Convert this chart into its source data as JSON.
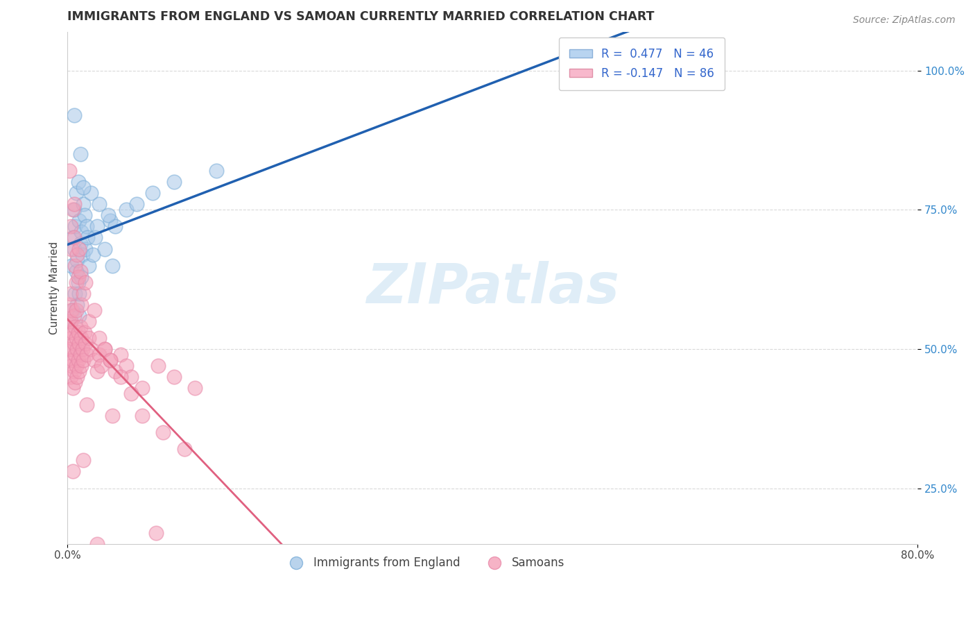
{
  "title": "IMMIGRANTS FROM ENGLAND VS SAMOAN CURRENTLY MARRIED CORRELATION CHART",
  "source_text": "Source: ZipAtlas.com",
  "ylabel": "Currently Married",
  "xlim": [
    0.0,
    80.0
  ],
  "ylim": [
    15.0,
    107.0
  ],
  "x_tick_labels": [
    "0.0%",
    "80.0%"
  ],
  "y_ticks": [
    25.0,
    50.0,
    75.0,
    100.0
  ],
  "y_tick_labels": [
    "25.0%",
    "50.0%",
    "75.0%",
    "100.0%"
  ],
  "blue_color": "#a8c8e8",
  "pink_color": "#f4a0b8",
  "blue_line_color": "#2060b0",
  "pink_line_color": "#e06080",
  "watermark": "ZIPatlas",
  "watermark_color": "#c0ddf0",
  "background_color": "#ffffff",
  "grid_color": "#d0d0d0",
  "blue_scatter_x": [
    0.3,
    0.4,
    0.5,
    0.5,
    0.6,
    0.6,
    0.7,
    0.7,
    0.8,
    0.8,
    0.9,
    0.9,
    1.0,
    1.0,
    1.1,
    1.1,
    1.2,
    1.2,
    1.3,
    1.3,
    1.4,
    1.5,
    1.6,
    1.7,
    1.8,
    1.9,
    2.0,
    2.2,
    2.4,
    2.6,
    3.0,
    3.5,
    4.0,
    4.5,
    5.5,
    6.5,
    8.0,
    10.0,
    14.0,
    4.2,
    47.0,
    1.5,
    2.8,
    3.8,
    0.6,
    1.1
  ],
  "blue_scatter_y": [
    55.0,
    65.0,
    70.0,
    57.0,
    68.0,
    75.0,
    60.0,
    72.0,
    64.0,
    78.0,
    58.0,
    66.0,
    62.0,
    80.0,
    73.0,
    56.0,
    69.0,
    85.0,
    63.0,
    71.0,
    67.0,
    76.0,
    74.0,
    68.0,
    72.0,
    70.0,
    65.0,
    78.0,
    67.0,
    70.0,
    76.0,
    68.0,
    73.0,
    72.0,
    75.0,
    76.0,
    78.0,
    80.0,
    82.0,
    65.0,
    100.0,
    79.0,
    72.0,
    74.0,
    92.0,
    60.0
  ],
  "pink_scatter_x": [
    0.1,
    0.1,
    0.2,
    0.2,
    0.2,
    0.3,
    0.3,
    0.3,
    0.3,
    0.4,
    0.4,
    0.4,
    0.5,
    0.5,
    0.5,
    0.6,
    0.6,
    0.6,
    0.7,
    0.7,
    0.7,
    0.8,
    0.8,
    0.8,
    0.9,
    0.9,
    1.0,
    1.0,
    1.1,
    1.1,
    1.2,
    1.2,
    1.3,
    1.3,
    1.4,
    1.5,
    1.6,
    1.7,
    1.8,
    2.0,
    2.2,
    2.5,
    2.8,
    3.0,
    3.2,
    3.5,
    4.0,
    4.5,
    5.0,
    5.5,
    6.0,
    7.0,
    8.5,
    10.0,
    12.0,
    0.3,
    0.4,
    0.5,
    0.6,
    0.7,
    0.8,
    0.9,
    1.0,
    1.1,
    1.2,
    1.3,
    1.5,
    1.7,
    2.0,
    2.5,
    3.0,
    3.5,
    4.0,
    5.0,
    6.0,
    7.0,
    9.0,
    11.0,
    0.2,
    0.6,
    1.8,
    4.2,
    0.5,
    1.5,
    2.8,
    8.3
  ],
  "pink_scatter_y": [
    50.0,
    55.0,
    48.0,
    53.0,
    58.0,
    45.0,
    50.0,
    55.0,
    60.0,
    47.0,
    52.0,
    57.0,
    43.0,
    48.0,
    53.0,
    46.0,
    51.0,
    56.0,
    44.0,
    49.0,
    54.0,
    47.0,
    52.0,
    57.0,
    45.0,
    50.0,
    48.0,
    53.0,
    46.0,
    51.0,
    49.0,
    54.0,
    47.0,
    52.0,
    50.0,
    48.0,
    53.0,
    51.0,
    49.0,
    52.0,
    50.0,
    48.0,
    46.0,
    49.0,
    47.0,
    50.0,
    48.0,
    46.0,
    49.0,
    47.0,
    45.0,
    43.0,
    47.0,
    45.0,
    43.0,
    72.0,
    68.0,
    75.0,
    70.0,
    65.0,
    62.0,
    67.0,
    63.0,
    68.0,
    64.0,
    58.0,
    60.0,
    62.0,
    55.0,
    57.0,
    52.0,
    50.0,
    48.0,
    45.0,
    42.0,
    38.0,
    35.0,
    32.0,
    82.0,
    76.0,
    40.0,
    38.0,
    28.0,
    30.0,
    15.0,
    17.0
  ]
}
